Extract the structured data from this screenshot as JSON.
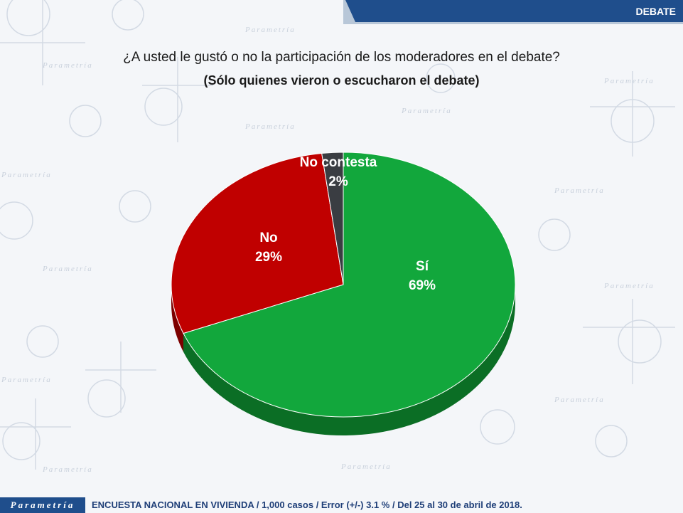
{
  "header": {
    "section_label": "DEBATE"
  },
  "question": {
    "title": "¿A usted le gustó o no la participación de los moderadores en el debate?",
    "subtitle": "(Sólo quienes vieron o escucharon el debate)"
  },
  "chart_data": {
    "type": "pie",
    "style": "3d",
    "slices": [
      {
        "label": "Sí",
        "value": 69,
        "display": "69%",
        "color": "#12a73c",
        "side_color": "#0b6e25"
      },
      {
        "label": "No",
        "value": 29,
        "display": "29%",
        "color": "#c00000",
        "side_color": "#7c0000"
      },
      {
        "label": "No contesta",
        "value": 2,
        "display": "2%",
        "color": "#3a3d42",
        "side_color": "#222428"
      }
    ]
  },
  "footer": {
    "brand": "Parametría",
    "note": "ENCUESTA NACIONAL EN VIVIENDA / 1,000 casos / Error (+/-) 3.1 % / Del 25 al 30 de abril de 2018."
  },
  "background": {
    "watermark_word": "Parametría"
  }
}
